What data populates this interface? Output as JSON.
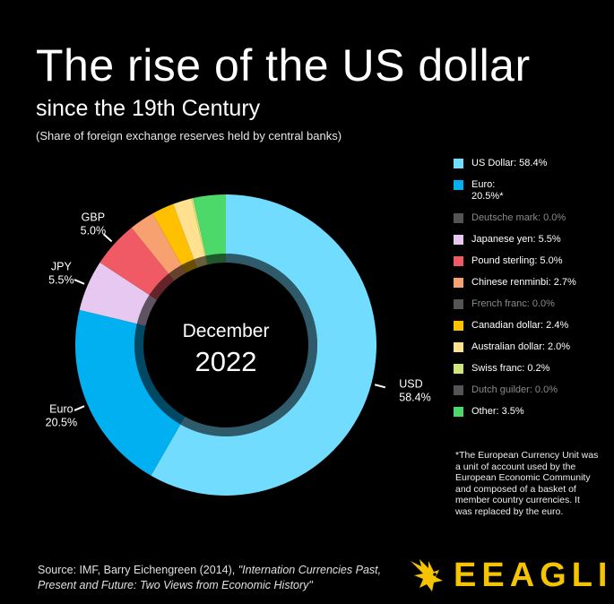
{
  "title": "The rise of the US dollar",
  "subtitle": "since the 19th Century",
  "note": "(Share of foreign exchange reserves held by central banks)",
  "chart_data": {
    "type": "pie",
    "center_label_line1": "December",
    "center_label_line2": "2022",
    "slices": [
      {
        "name": "US Dollar",
        "value": 58.4,
        "color": "#72dcff"
      },
      {
        "name": "Euro",
        "value": 20.5,
        "color": "#00b0f0"
      },
      {
        "name": "Deutsche mark",
        "value": 0.0,
        "color": "#777777"
      },
      {
        "name": "Japanese yen",
        "value": 5.5,
        "color": "#e6c8f0"
      },
      {
        "name": "Pound sterling",
        "value": 5.0,
        "color": "#f05a64"
      },
      {
        "name": "Chinese renminbi",
        "value": 2.7,
        "color": "#f7a070"
      },
      {
        "name": "French franc",
        "value": 0.0,
        "color": "#777777"
      },
      {
        "name": "Canadian dollar",
        "value": 2.4,
        "color": "#ffc000"
      },
      {
        "name": "Australian dollar",
        "value": 2.0,
        "color": "#ffe190"
      },
      {
        "name": "Swiss franc",
        "value": 0.2,
        "color": "#cfe67a"
      },
      {
        "name": "Dutch guilder",
        "value": 0.0,
        "color": "#777777"
      },
      {
        "name": "Other",
        "value": 3.5,
        "color": "#4cd96a"
      }
    ],
    "annotations": [
      {
        "line1": "USD",
        "line2": "58.4%"
      },
      {
        "line1": "Euro",
        "line2": "20.5%"
      },
      {
        "line1": "JPY",
        "line2": "5.5%"
      },
      {
        "line1": "GBP",
        "line2": "5.0%"
      }
    ]
  },
  "legend": [
    {
      "label": "US Dollar: 58.4%",
      "color": "#72dcff",
      "dim": false
    },
    {
      "label": "Euro:\n20.5%*",
      "color": "#00b0f0",
      "dim": false
    },
    {
      "label": "Deutsche mark: 0.0%",
      "color": "#777777",
      "dim": true
    },
    {
      "label": "Japanese yen: 5.5%",
      "color": "#e6c8f0",
      "dim": false
    },
    {
      "label": "Pound sterling: 5.0%",
      "color": "#f05a64",
      "dim": false
    },
    {
      "label": "Chinese renminbi: 2.7%",
      "color": "#f7a070",
      "dim": false
    },
    {
      "label": "French franc: 0.0%",
      "color": "#777777",
      "dim": true
    },
    {
      "label": "Canadian dollar: 2.4%",
      "color": "#ffc000",
      "dim": false
    },
    {
      "label": "Australian dollar: 2.0%",
      "color": "#ffe190",
      "dim": false
    },
    {
      "label": "Swiss franc: 0.2%",
      "color": "#cfe67a",
      "dim": false
    },
    {
      "label": "Dutch guilder: 0.0%",
      "color": "#777777",
      "dim": true
    },
    {
      "label": "Other: 3.5%",
      "color": "#4cd96a",
      "dim": false
    }
  ],
  "footnote": "*The European Currency Unit was a unit of account used by the European Economic Community and composed of a basket of member country currencies. It was replaced by the euro.",
  "source": {
    "prefix": "Source: IMF, Barry Eichengreen (2014), ",
    "italic1": "\"Internation Currencies Past,",
    "italic2": "Present and Future: Two Views from Economic History\""
  },
  "brand": {
    "name": "EEAGLI",
    "color": "#f5c400"
  }
}
